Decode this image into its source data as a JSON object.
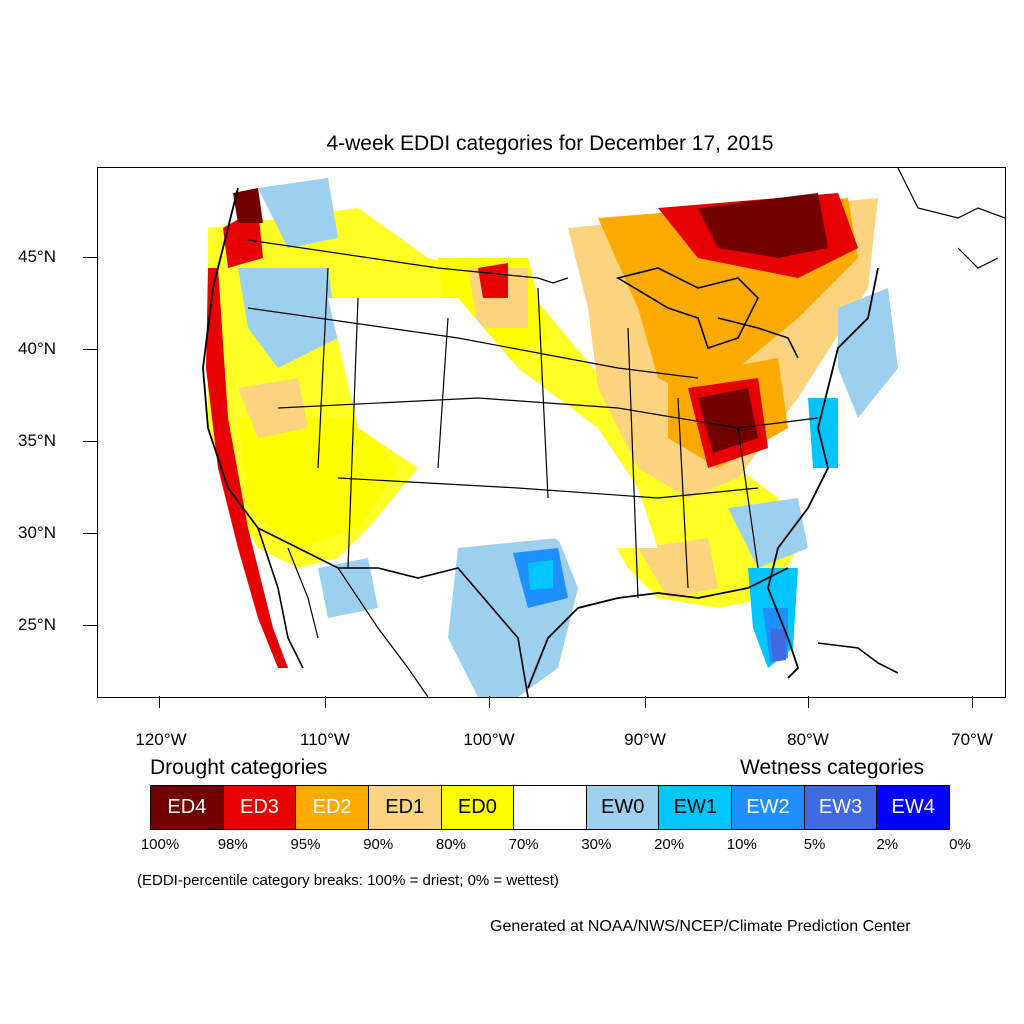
{
  "title": "4-week EDDI categories for December 17, 2015",
  "axes": {
    "lat_labels": [
      "45°N",
      "40°N",
      "35°N",
      "30°N",
      "25°N"
    ],
    "lon_labels": [
      "120°W",
      "110°W",
      "100°W",
      "90°W",
      "80°W",
      "70°W"
    ]
  },
  "legend": {
    "drought_heading": "Drought categories",
    "wetness_heading": "Wetness categories",
    "categories": [
      {
        "label": "ED4",
        "color": "#730000",
        "text_color": "#ffffff"
      },
      {
        "label": "ED3",
        "color": "#e60000",
        "text_color": "#ffffff"
      },
      {
        "label": "ED2",
        "color": "#ffaa00",
        "text_color": "#ffffff"
      },
      {
        "label": "ED1",
        "color": "#fcd37f",
        "text_color": "#000000"
      },
      {
        "label": "ED0",
        "color": "#ffff00",
        "text_color": "#000000"
      },
      {
        "label": "",
        "color": "#ffffff",
        "text_color": "#000000"
      },
      {
        "label": "EW0",
        "color": "#9dcfee",
        "text_color": "#000000"
      },
      {
        "label": "EW1",
        "color": "#00c5ff",
        "text_color": "#000000"
      },
      {
        "label": "EW2",
        "color": "#1e8fff",
        "text_color": "#ffffff"
      },
      {
        "label": "EW3",
        "color": "#4169e1",
        "text_color": "#ffffff"
      },
      {
        "label": "EW4",
        "color": "#0000ff",
        "text_color": "#ffffff"
      }
    ],
    "breaks": [
      "100%",
      "98%",
      "95%",
      "90%",
      "80%",
      "70%",
      "30%",
      "20%",
      "10%",
      "5%",
      "2%",
      "0%"
    ]
  },
  "note": "(EDDI-percentile category breaks: 100% = driest; 0% = wettest)",
  "credit": "Generated at NOAA/NWS/NCEP/Climate Prediction Center"
}
